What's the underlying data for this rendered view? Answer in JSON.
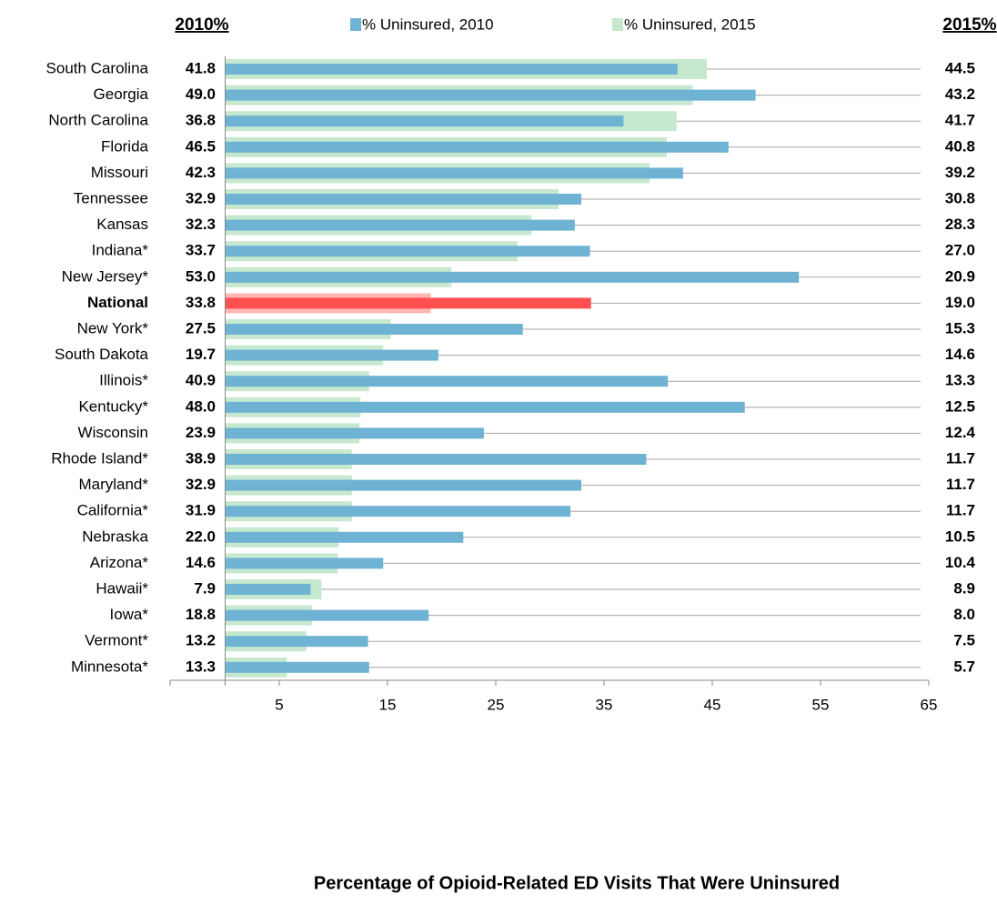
{
  "chart_data": {
    "type": "hbar-overlap",
    "left_header": "2010%",
    "right_header": "2015%",
    "x_label": "Percentage of Opioid-Related ED Visits That Were Uninsured",
    "categories": [
      "South Carolina",
      "Georgia",
      "North Carolina",
      "Florida",
      "Missouri",
      "Tennessee",
      "Kansas",
      "Indiana*",
      "New Jersey*",
      "National",
      "New York*",
      "South Dakota",
      "Illinois*",
      "Kentucky*",
      "Wisconsin",
      "Rhode Island*",
      "Maryland*",
      "California*",
      "Nebraska",
      "Arizona*",
      "Hawaii*",
      "Iowa*",
      "Vermont*",
      "Minnesota*"
    ],
    "series": [
      {
        "name": "% Uninsured,  2015",
        "color": "#c6e8cf",
        "highlight_color": "#ffb6b6",
        "values": [
          44.5,
          43.2,
          41.7,
          40.8,
          39.2,
          30.8,
          28.3,
          27.0,
          20.9,
          19.0,
          15.3,
          14.6,
          13.3,
          12.5,
          12.4,
          11.7,
          11.7,
          11.7,
          10.5,
          10.4,
          8.9,
          8.0,
          7.5,
          5.7
        ],
        "value_labels": [
          "44.5",
          "43.2",
          "41.7",
          "40.8",
          "39.2",
          "30.8",
          "28.3",
          "27.0",
          "20.9",
          "19.0",
          "15.3",
          "14.6",
          "13.3",
          "12.5",
          "12.4",
          "11.7",
          "11.7",
          "11.7",
          "10.5",
          "10.4",
          "8.9",
          "8.0",
          "7.5",
          "5.7"
        ]
      },
      {
        "name": "% Uninsured,  2010",
        "color": "#6fb3d4",
        "highlight_color": "#ff4f4f",
        "values": [
          41.8,
          49.0,
          36.8,
          46.5,
          42.3,
          32.9,
          32.3,
          33.7,
          53.0,
          33.8,
          27.5,
          19.7,
          40.9,
          48.0,
          23.9,
          38.9,
          32.9,
          31.9,
          22.0,
          14.6,
          7.9,
          18.8,
          13.2,
          13.3
        ],
        "value_labels": [
          "41.8",
          "49.0",
          "36.8",
          "46.5",
          "42.3",
          "32.9",
          "32.3",
          "33.7",
          "53.0",
          "33.8",
          "27.5",
          "19.7",
          "40.9",
          "48.0",
          "23.9",
          "38.9",
          "32.9",
          "31.9",
          "22.0",
          "14.6",
          "7.9",
          "18.8",
          "13.2",
          "13.3"
        ]
      }
    ],
    "highlight_category": "National",
    "highlight_text_color": "#ff0000",
    "xlim": [
      0,
      65
    ],
    "xticks": [
      5,
      15,
      25,
      35,
      45,
      55,
      65
    ]
  }
}
